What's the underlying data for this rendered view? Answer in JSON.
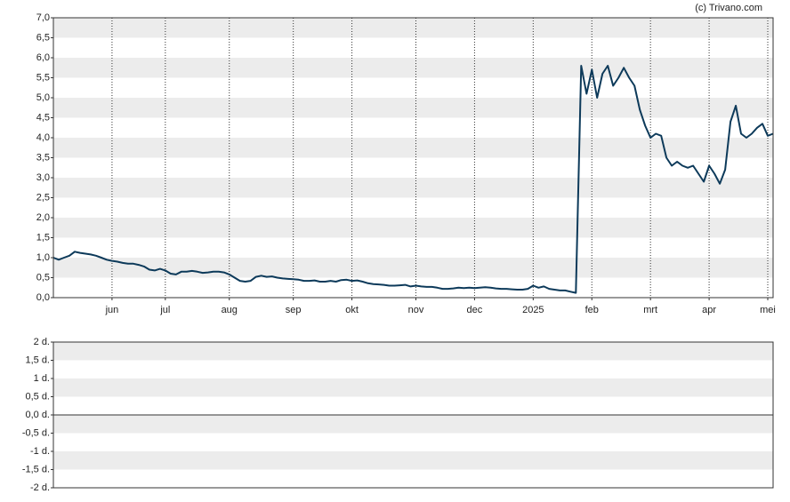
{
  "credit": "(c) Trivano.com",
  "chart_data": [
    {
      "type": "line",
      "series": [
        {
          "color": "#0d3a5a",
          "values": [
            1.0,
            0.95,
            1.0,
            1.05,
            1.15,
            1.12,
            1.1,
            1.08,
            1.05,
            1.0,
            0.95,
            0.92,
            0.9,
            0.87,
            0.85,
            0.85,
            0.82,
            0.78,
            0.7,
            0.68,
            0.72,
            0.68,
            0.6,
            0.58,
            0.65,
            0.65,
            0.67,
            0.65,
            0.62,
            0.63,
            0.65,
            0.65,
            0.63,
            0.58,
            0.5,
            0.42,
            0.4,
            0.42,
            0.52,
            0.55,
            0.52,
            0.53,
            0.5,
            0.48,
            0.47,
            0.46,
            0.45,
            0.42,
            0.42,
            0.43,
            0.4,
            0.4,
            0.42,
            0.4,
            0.44,
            0.45,
            0.42,
            0.43,
            0.4,
            0.36,
            0.34,
            0.33,
            0.32,
            0.3,
            0.3,
            0.31,
            0.32,
            0.28,
            0.3,
            0.28,
            0.27,
            0.27,
            0.25,
            0.22,
            0.22,
            0.23,
            0.25,
            0.24,
            0.25,
            0.24,
            0.25,
            0.26,
            0.25,
            0.23,
            0.22,
            0.22,
            0.21,
            0.2,
            0.2,
            0.22,
            0.3,
            0.25,
            0.28,
            0.22,
            0.2,
            0.18,
            0.18,
            0.15,
            0.12,
            5.8,
            5.1,
            5.7,
            5.0,
            5.6,
            5.8,
            5.3,
            5.5,
            5.75,
            5.5,
            5.3,
            4.7,
            4.3,
            4.0,
            4.1,
            4.05,
            3.5,
            3.3,
            3.4,
            3.3,
            3.25,
            3.3,
            3.1,
            2.9,
            3.3,
            3.1,
            2.85,
            3.2,
            4.4,
            4.8,
            4.1,
            4.0,
            4.1,
            4.25,
            4.35,
            4.05,
            4.1
          ]
        }
      ],
      "xlim": [
        0,
        135
      ],
      "xticks": [
        {
          "value": 11,
          "label": "jun"
        },
        {
          "value": 21,
          "label": "jul"
        },
        {
          "value": 33,
          "label": "aug"
        },
        {
          "value": 45,
          "label": "sep"
        },
        {
          "value": 56,
          "label": "okt"
        },
        {
          "value": 68,
          "label": "nov"
        },
        {
          "value": 79,
          "label": "dec"
        },
        {
          "value": 90,
          "label": "2025"
        },
        {
          "value": 101,
          "label": "feb"
        },
        {
          "value": 112,
          "label": "mrt"
        },
        {
          "value": 123,
          "label": "apr"
        },
        {
          "value": 134,
          "label": "mei"
        }
      ],
      "ylim": [
        0,
        7
      ],
      "yticks": [
        {
          "value": 0,
          "label": "0,0"
        },
        {
          "value": 0.5,
          "label": "0,5"
        },
        {
          "value": 1,
          "label": "1,0"
        },
        {
          "value": 1.5,
          "label": "1,5"
        },
        {
          "value": 2,
          "label": "2,0"
        },
        {
          "value": 2.5,
          "label": "2,5"
        },
        {
          "value": 3,
          "label": "3,0"
        },
        {
          "value": 3.5,
          "label": "3,5"
        },
        {
          "value": 4,
          "label": "4,0"
        },
        {
          "value": 4.5,
          "label": "4,5"
        },
        {
          "value": 5,
          "label": "5,0"
        },
        {
          "value": 5.5,
          "label": "5,5"
        },
        {
          "value": 6,
          "label": "6,0"
        },
        {
          "value": 6.5,
          "label": "6,5"
        },
        {
          "value": 7,
          "label": "7,0"
        }
      ]
    },
    {
      "type": "line",
      "series": [],
      "ylim": [
        -2,
        2
      ],
      "yticks": [
        {
          "value": -2,
          "label": "-2 d."
        },
        {
          "value": -1.5,
          "label": "-1,5 d."
        },
        {
          "value": -1,
          "label": "-1 d."
        },
        {
          "value": -0.5,
          "label": "-0,5 d."
        },
        {
          "value": 0,
          "label": "0,0 d."
        },
        {
          "value": 0.5,
          "label": "0,5 d."
        },
        {
          "value": 1,
          "label": "1 d."
        },
        {
          "value": 1.5,
          "label": "1,5 d."
        },
        {
          "value": 2,
          "label": "2 d."
        }
      ]
    }
  ]
}
